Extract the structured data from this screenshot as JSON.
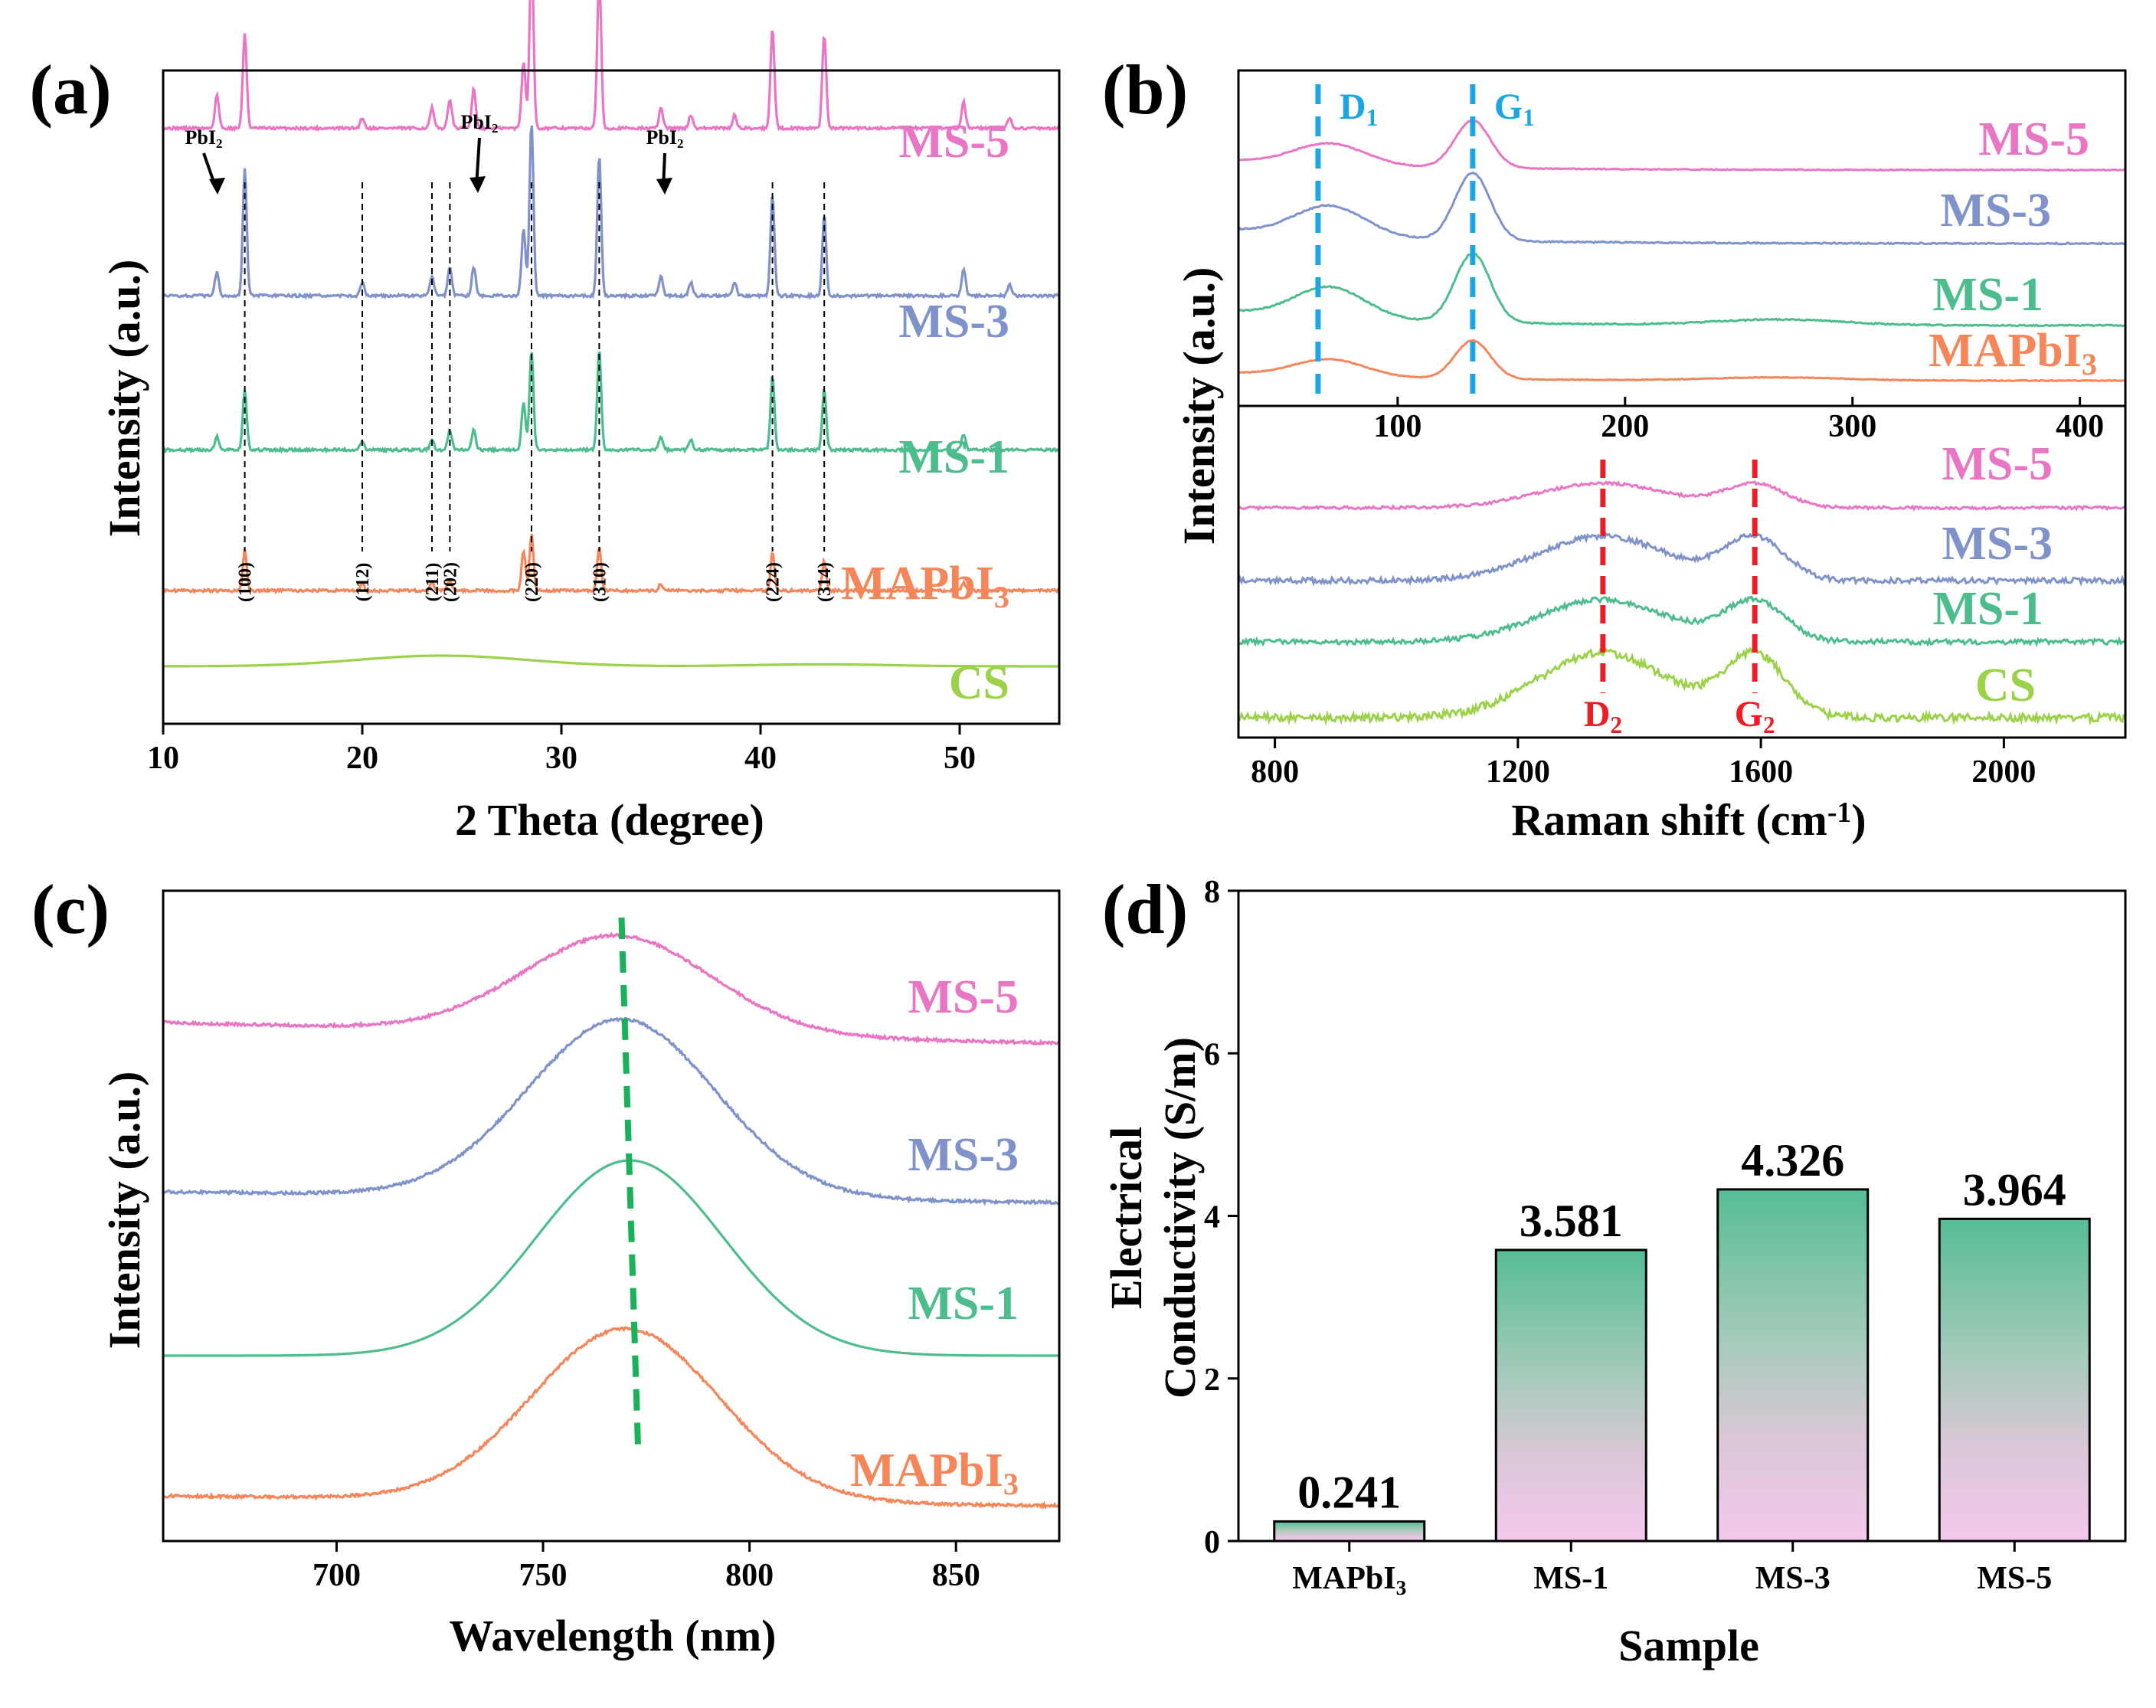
{
  "colors": {
    "ms5": "#e876c4",
    "ms3": "#7f92c9",
    "ms1": "#4dbd8d",
    "mapbi3": "#f4865a",
    "cs": "#9bd24a",
    "blue_marker": "#1ca6e6",
    "red_marker": "#ee1c24",
    "green_marker": "#19b25a",
    "bar_top": "#5cbf9a",
    "bar_bottom": "#f3c9ea"
  },
  "chart_data": [
    {
      "panel": "(a)",
      "type": "line",
      "xlabel": "2 Theta (degree)",
      "ylabel": "Intensity (a.u.)",
      "xlim": [
        10,
        55
      ],
      "xticks": [
        10,
        20,
        30,
        40,
        50
      ],
      "series": [
        {
          "name": "MS-5",
          "offset": 4.0,
          "peaks": [
            [
              12.7,
              0.25
            ],
            [
              14.1,
              0.7
            ],
            [
              20.0,
              0.08
            ],
            [
              23.5,
              0.15
            ],
            [
              24.4,
              0.22
            ],
            [
              25.6,
              0.3
            ],
            [
              28.1,
              0.5
            ],
            [
              28.5,
              1.3
            ],
            [
              31.9,
              1.15
            ],
            [
              35.0,
              0.15
            ],
            [
              36.5,
              0.1
            ],
            [
              38.7,
              0.1
            ],
            [
              40.6,
              0.75
            ],
            [
              43.2,
              0.7
            ],
            [
              50.2,
              0.2
            ],
            [
              52.5,
              0.08
            ]
          ]
        },
        {
          "name": "MS-3",
          "offset": 2.75,
          "peaks": [
            [
              12.7,
              0.18
            ],
            [
              14.1,
              0.95
            ],
            [
              20.0,
              0.1
            ],
            [
              23.5,
              0.15
            ],
            [
              24.4,
              0.22
            ],
            [
              25.6,
              0.22
            ],
            [
              28.1,
              0.5
            ],
            [
              28.5,
              1.3
            ],
            [
              31.9,
              1.05
            ],
            [
              35.0,
              0.15
            ],
            [
              36.5,
              0.1
            ],
            [
              38.7,
              0.1
            ],
            [
              40.6,
              0.75
            ],
            [
              43.2,
              0.6
            ],
            [
              50.2,
              0.2
            ],
            [
              52.5,
              0.08
            ]
          ]
        },
        {
          "name": "MS-1",
          "offset": 1.6,
          "peaks": [
            [
              12.7,
              0.1
            ],
            [
              14.1,
              0.45
            ],
            [
              20.0,
              0.07
            ],
            [
              23.5,
              0.08
            ],
            [
              24.4,
              0.15
            ],
            [
              25.6,
              0.15
            ],
            [
              28.1,
              0.35
            ],
            [
              28.5,
              0.75
            ],
            [
              31.9,
              0.75
            ],
            [
              35.0,
              0.1
            ],
            [
              36.5,
              0.08
            ],
            [
              40.6,
              0.55
            ],
            [
              43.2,
              0.45
            ],
            [
              50.2,
              0.12
            ]
          ]
        },
        {
          "name": "MAPbI3",
          "label": "MAPbI",
          "sub": "3",
          "offset": 0.55,
          "peaks": [
            [
              14.1,
              0.3
            ],
            [
              20.0,
              0.05
            ],
            [
              23.5,
              0.07
            ],
            [
              24.4,
              0.08
            ],
            [
              28.1,
              0.3
            ],
            [
              28.5,
              0.42
            ],
            [
              31.9,
              0.33
            ],
            [
              35.0,
              0.05
            ],
            [
              40.6,
              0.28
            ],
            [
              43.2,
              0.22
            ],
            [
              50.2,
              0.06
            ]
          ]
        },
        {
          "name": "CS",
          "offset": 0.0,
          "peaks": []
        }
      ],
      "reference_lines": [
        14.1,
        20.0,
        23.5,
        24.4,
        28.5,
        31.9,
        40.6,
        43.2
      ],
      "hkl_labels": [
        {
          "x": 14.1,
          "text": "(100)"
        },
        {
          "x": 20.0,
          "text": "(112)"
        },
        {
          "x": 23.5,
          "text": "(211)"
        },
        {
          "x": 24.4,
          "text": "(202)"
        },
        {
          "x": 28.5,
          "text": "(220)"
        },
        {
          "x": 31.9,
          "text": "(310)"
        },
        {
          "x": 40.6,
          "text": "(224)"
        },
        {
          "x": 43.2,
          "text": "(314)"
        }
      ],
      "annotations": [
        {
          "text": "PbI",
          "sub": "2",
          "x": 12.7
        },
        {
          "text": "PbI",
          "sub": "2",
          "x": 25.6
        },
        {
          "text": "PbI",
          "sub": "2",
          "x": 35.0
        }
      ]
    },
    {
      "panel": "(b)",
      "type": "line",
      "ylabel": "Intensity (a.u.)",
      "top": {
        "xlim": [
          30,
          420
        ],
        "xticks": [
          100,
          200,
          300,
          400
        ],
        "series": [
          "MS-5",
          "MS-3",
          "MS-1",
          "MAPbI3"
        ],
        "markers": [
          {
            "x": 65,
            "label": "D",
            "sub": "1"
          },
          {
            "x": 133,
            "label": "G",
            "sub": "1"
          }
        ]
      },
      "bottom": {
        "xlim": [
          740,
          2200
        ],
        "xticks": [
          800,
          1200,
          1600,
          2000
        ],
        "xlabel": "Raman shift (cm",
        "xlabel_sup": "-1",
        "xlabel_end": ")",
        "series": [
          "MS-5",
          "MS-3",
          "MS-1",
          "CS"
        ],
        "markers": [
          {
            "x": 1340,
            "label": "D",
            "sub": "2"
          },
          {
            "x": 1590,
            "label": "G",
            "sub": "2"
          }
        ]
      }
    },
    {
      "panel": "(c)",
      "type": "line",
      "xlabel": "Wavelength (nm)",
      "ylabel": "Intensity (a.u.)",
      "xlim": [
        658,
        875
      ],
      "xticks": [
        700,
        750,
        800,
        850
      ],
      "series": [
        {
          "name": "MS-5",
          "peak_nm": 768,
          "height": 0.85
        },
        {
          "name": "MS-3",
          "peak_nm": 769,
          "height": 1.55
        },
        {
          "name": "MS-1",
          "peak_nm": 771,
          "height": 1.7
        },
        {
          "name": "MAPbI3",
          "label": "MAPbI",
          "sub": "3",
          "peak_nm": 770,
          "height": 1.5
        }
      ],
      "shift_line": [
        [
          769,
          "top"
        ],
        [
          773,
          "bottom"
        ]
      ]
    },
    {
      "panel": "(d)",
      "type": "bar",
      "xlabel": "Sample",
      "ylabel": "Electrical",
      "ylabel2": "Conductivity (S/m)",
      "ylim": [
        0,
        8
      ],
      "yticks": [
        0,
        2,
        4,
        6,
        8
      ],
      "categories": [
        "MAPbI3",
        "MS-1",
        "MS-3",
        "MS-5"
      ],
      "category_labels": [
        {
          "text": "MAPbI",
          "sub": "3"
        },
        {
          "text": "MS-1",
          "sub": ""
        },
        {
          "text": "MS-3",
          "sub": ""
        },
        {
          "text": "MS-5",
          "sub": ""
        }
      ],
      "values": [
        0.241,
        3.581,
        4.326,
        3.964
      ],
      "value_labels": [
        "0.241",
        "3.581",
        "4.326",
        "3.964"
      ]
    }
  ]
}
